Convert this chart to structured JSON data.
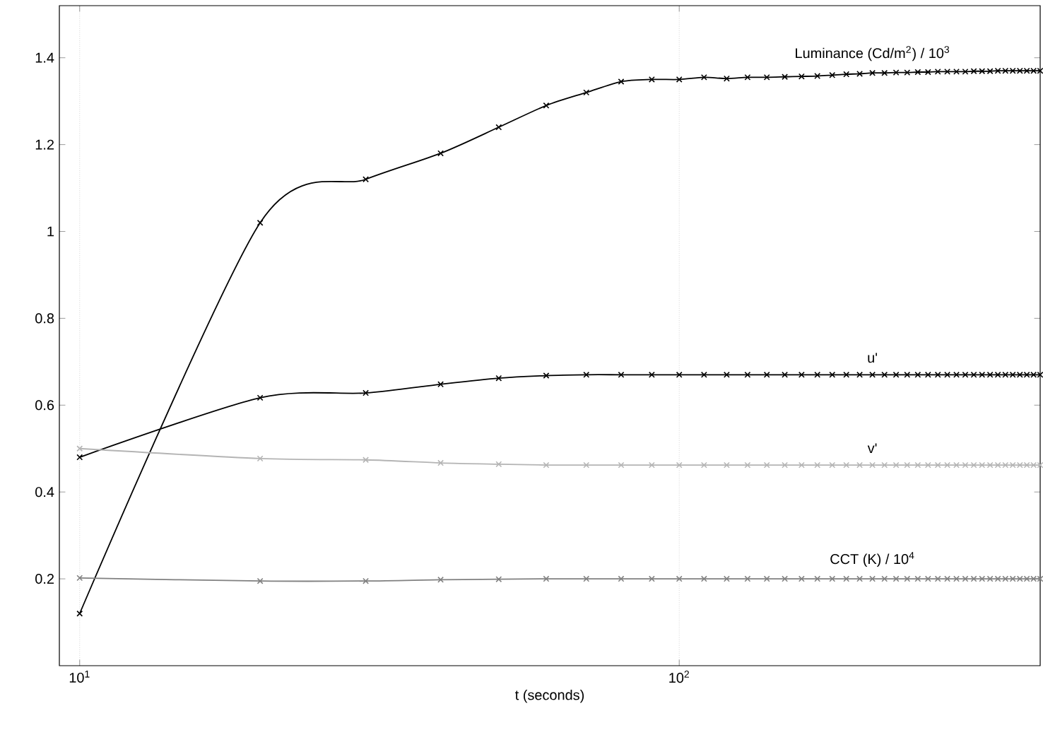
{
  "chart_data": {
    "type": "line",
    "xlabel": "t (seconds)",
    "log": "x",
    "grid": "x",
    "marker": "cross",
    "line_style": "solid",
    "xlim": [
      9.25,
      400
    ],
    "ylim": [
      0,
      1.52
    ],
    "xticks": [
      {
        "value": 10,
        "label": "10$^{1}$"
      },
      {
        "value": 100,
        "label": "10$^{2}$"
      }
    ],
    "yticks": [
      0.2,
      0.4,
      0.6,
      0.8,
      1,
      1.2,
      1.4
    ],
    "x": [
      10,
      20,
      30,
      40,
      50,
      60,
      70,
      80,
      90,
      100,
      110,
      120,
      130,
      140,
      150,
      160,
      170,
      180,
      190,
      200,
      210,
      220,
      230,
      240,
      250,
      260,
      270,
      280,
      290,
      300,
      310,
      320,
      330,
      340,
      350,
      360,
      370,
      380,
      390,
      400
    ],
    "series": [
      {
        "name": "Luminance (Cd/m$^{2}$) / 10$^{3}$",
        "color": "#000000",
        "values": [
          0.12,
          1.02,
          1.12,
          1.18,
          1.24,
          1.29,
          1.32,
          1.345,
          1.35,
          1.35,
          1.355,
          1.352,
          1.355,
          1.355,
          1.356,
          1.357,
          1.358,
          1.36,
          1.362,
          1.363,
          1.365,
          1.365,
          1.366,
          1.366,
          1.367,
          1.367,
          1.368,
          1.368,
          1.368,
          1.368,
          1.369,
          1.369,
          1.369,
          1.37,
          1.37,
          1.37,
          1.37,
          1.37,
          1.37,
          1.37
        ]
      },
      {
        "name": "u'",
        "color": "#000000",
        "values": [
          0.48,
          0.617,
          0.628,
          0.648,
          0.662,
          0.668,
          0.67,
          0.67,
          0.67,
          0.67,
          0.67,
          0.67,
          0.67,
          0.67,
          0.67,
          0.67,
          0.67,
          0.67,
          0.67,
          0.67,
          0.67,
          0.67,
          0.67,
          0.67,
          0.67,
          0.67,
          0.67,
          0.67,
          0.67,
          0.67,
          0.67,
          0.67,
          0.67,
          0.67,
          0.67,
          0.67,
          0.67,
          0.67,
          0.67,
          0.67
        ]
      },
      {
        "name": "v'",
        "color": "#b4b4b4",
        "values": [
          0.5,
          0.477,
          0.474,
          0.467,
          0.464,
          0.462,
          0.462,
          0.462,
          0.462,
          0.462,
          0.462,
          0.462,
          0.462,
          0.462,
          0.462,
          0.462,
          0.462,
          0.462,
          0.462,
          0.462,
          0.462,
          0.462,
          0.462,
          0.462,
          0.462,
          0.462,
          0.462,
          0.462,
          0.462,
          0.462,
          0.462,
          0.462,
          0.462,
          0.462,
          0.462,
          0.462,
          0.462,
          0.462,
          0.462,
          0.462
        ]
      },
      {
        "name": "CCT (K) / 10$^{4}$",
        "color": "#808080",
        "values": [
          0.202,
          0.195,
          0.195,
          0.198,
          0.199,
          0.2,
          0.2,
          0.2,
          0.2,
          0.2,
          0.2,
          0.2,
          0.2,
          0.2,
          0.2,
          0.2,
          0.2,
          0.2,
          0.2,
          0.2,
          0.2,
          0.2,
          0.2,
          0.2,
          0.2,
          0.2,
          0.2,
          0.2,
          0.2,
          0.2,
          0.2,
          0.2,
          0.2,
          0.2,
          0.2,
          0.2,
          0.2,
          0.2,
          0.2,
          0.2
        ]
      }
    ]
  }
}
